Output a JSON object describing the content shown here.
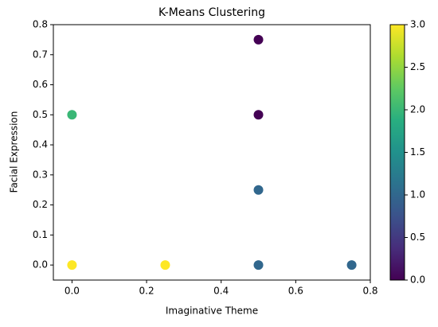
{
  "chart_data": {
    "type": "scatter",
    "title": "K-Means Clustering",
    "x_label": "Imaginative Theme",
    "y_label": "Facial Expression",
    "x": [
      0.5,
      0.5,
      0,
      0.5,
      0,
      0.25,
      0.5,
      0.75
    ],
    "y": [
      0.75,
      0.5,
      0.5,
      0.25,
      0,
      0,
      0,
      0
    ],
    "c": [
      0,
      0,
      2,
      1,
      3,
      3,
      1,
      1
    ],
    "colormap": "viridis",
    "xlim": [
      -0.05,
      0.8
    ],
    "xticks": [
      {
        "value": 0,
        "label": "0.0"
      },
      0.2,
      0.4,
      0.6,
      0.8
    ],
    "ylim": [
      -0.05,
      0.8
    ],
    "yticks": [
      {
        "value": 0,
        "label": "0.0"
      },
      0.1,
      0.2,
      0.3,
      0.4,
      0.5,
      0.6,
      0.7,
      0.8
    ],
    "clim": [
      0,
      3
    ],
    "cticks": [
      {
        "value": 0,
        "label": "0.0"
      },
      0.5,
      {
        "value": 1,
        "label": "1.0"
      },
      1.5,
      {
        "value": 2,
        "label": "2.0"
      },
      2.5,
      {
        "value": 3,
        "label": "3.0"
      }
    ]
  }
}
